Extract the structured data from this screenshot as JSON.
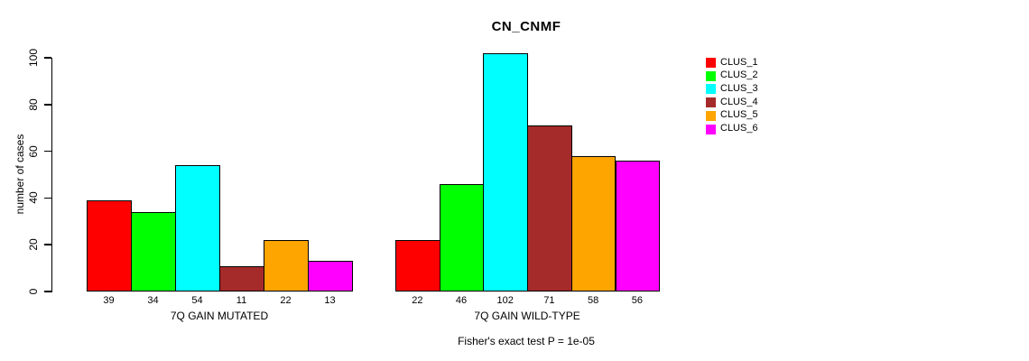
{
  "chart_data": {
    "type": "bar",
    "title": "CN_CNMF",
    "ylabel": "number of cases",
    "xlabel": "",
    "annotation": "Fisher's exact test P = 1e-05",
    "ylim": [
      0,
      100
    ],
    "y_ticks": [
      0,
      20,
      40,
      60,
      80,
      100
    ],
    "grid": false,
    "legend_position": "right",
    "bar_value_labels_shown": true,
    "categories": [
      "7Q GAIN MUTATED",
      "7Q GAIN WILD-TYPE"
    ],
    "series": [
      {
        "name": "CLUS_1",
        "color": "#FF0000",
        "values": [
          39,
          22
        ]
      },
      {
        "name": "CLUS_2",
        "color": "#00FF00",
        "values": [
          34,
          46
        ]
      },
      {
        "name": "CLUS_3",
        "color": "#00FFFF",
        "values": [
          54,
          102
        ]
      },
      {
        "name": "CLUS_4",
        "color": "#A52A2A",
        "values": [
          11,
          71
        ]
      },
      {
        "name": "CLUS_5",
        "color": "#FFA500",
        "values": [
          22,
          58
        ]
      },
      {
        "name": "CLUS_6",
        "color": "#FF00FF",
        "values": [
          13,
          56
        ]
      }
    ]
  }
}
